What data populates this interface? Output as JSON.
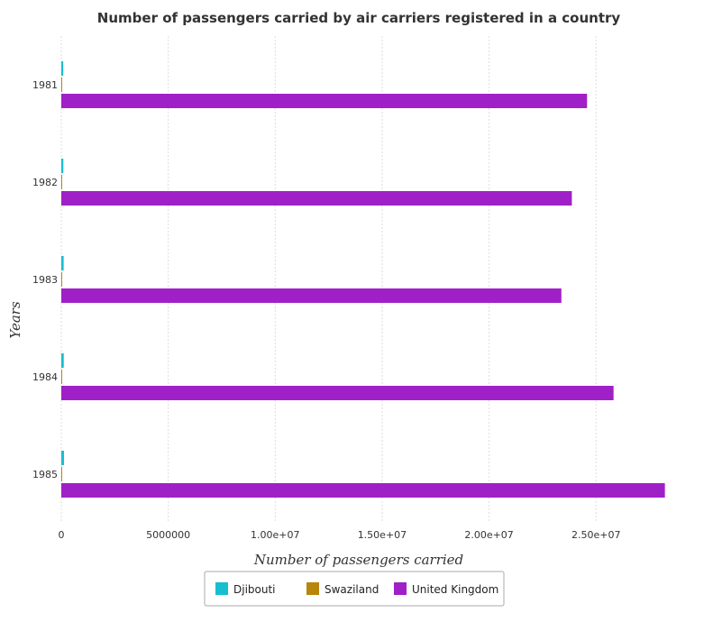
{
  "chart_data": {
    "type": "bar",
    "orientation": "horizontal",
    "title": "Number of passengers carried by air carriers registered in a country",
    "xlabel": "Number of passengers carried",
    "ylabel": "Years",
    "categories": [
      "1981",
      "1982",
      "1983",
      "1984",
      "1985"
    ],
    "xlim": [
      0,
      29500000
    ],
    "xticks": [
      0,
      5000000,
      10000000,
      15000000,
      20000000,
      25000000
    ],
    "xtick_labels": [
      "0",
      "5000000",
      "1.00e+07",
      "1.50e+07",
      "2.00e+07",
      "2.50e+07"
    ],
    "grid": "x",
    "legend_position": "bottom",
    "series": [
      {
        "name": "Djibouti",
        "color": "#17becf",
        "values": [
          90000,
          95000,
          110000,
          115000,
          125000
        ]
      },
      {
        "name": "Swaziland",
        "color": "#b8860b",
        "values": [
          28000,
          25000,
          30000,
          33000,
          38000
        ]
      },
      {
        "name": "United Kingdom",
        "color": "#a020c8",
        "values": [
          24580000,
          23870000,
          23380000,
          25820000,
          28220000
        ]
      }
    ]
  }
}
